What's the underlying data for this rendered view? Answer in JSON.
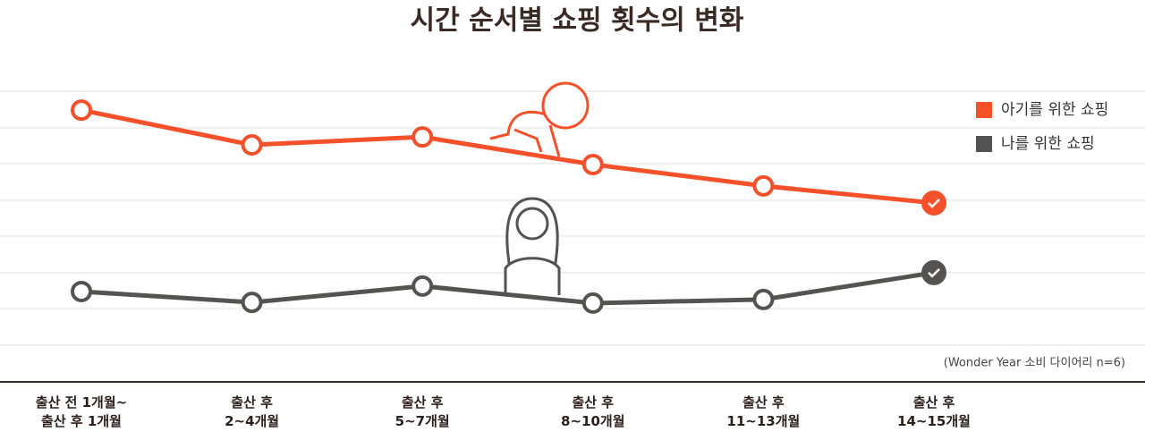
{
  "chart_data": {
    "type": "line",
    "title": "시간 순서별 쇼핑 횟수의 변화",
    "categories": [
      "출산 전 1개월~\n출산 후 1개월",
      "출산 후\n2~4개월",
      "출산 후\n5~7개월",
      "출산 후\n8~10개월",
      "출산 후\n11~13개월",
      "출산 후\n14~15개월"
    ],
    "series": [
      {
        "name": "아기를 위한 쇼핑",
        "color": "#f4502a",
        "values": [
          6.48,
          5.52,
          5.74,
          4.98,
          4.39,
          3.92
        ]
      },
      {
        "name": "나를 위한 쇼핑",
        "color": "#555252",
        "values": [
          1.48,
          1.18,
          1.63,
          1.16,
          1.26,
          2.0
        ]
      }
    ],
    "ylim": [
      0,
      7
    ],
    "legend": "top-right",
    "source": "(Wonder Year 소비 다이어리 n=6)"
  }
}
